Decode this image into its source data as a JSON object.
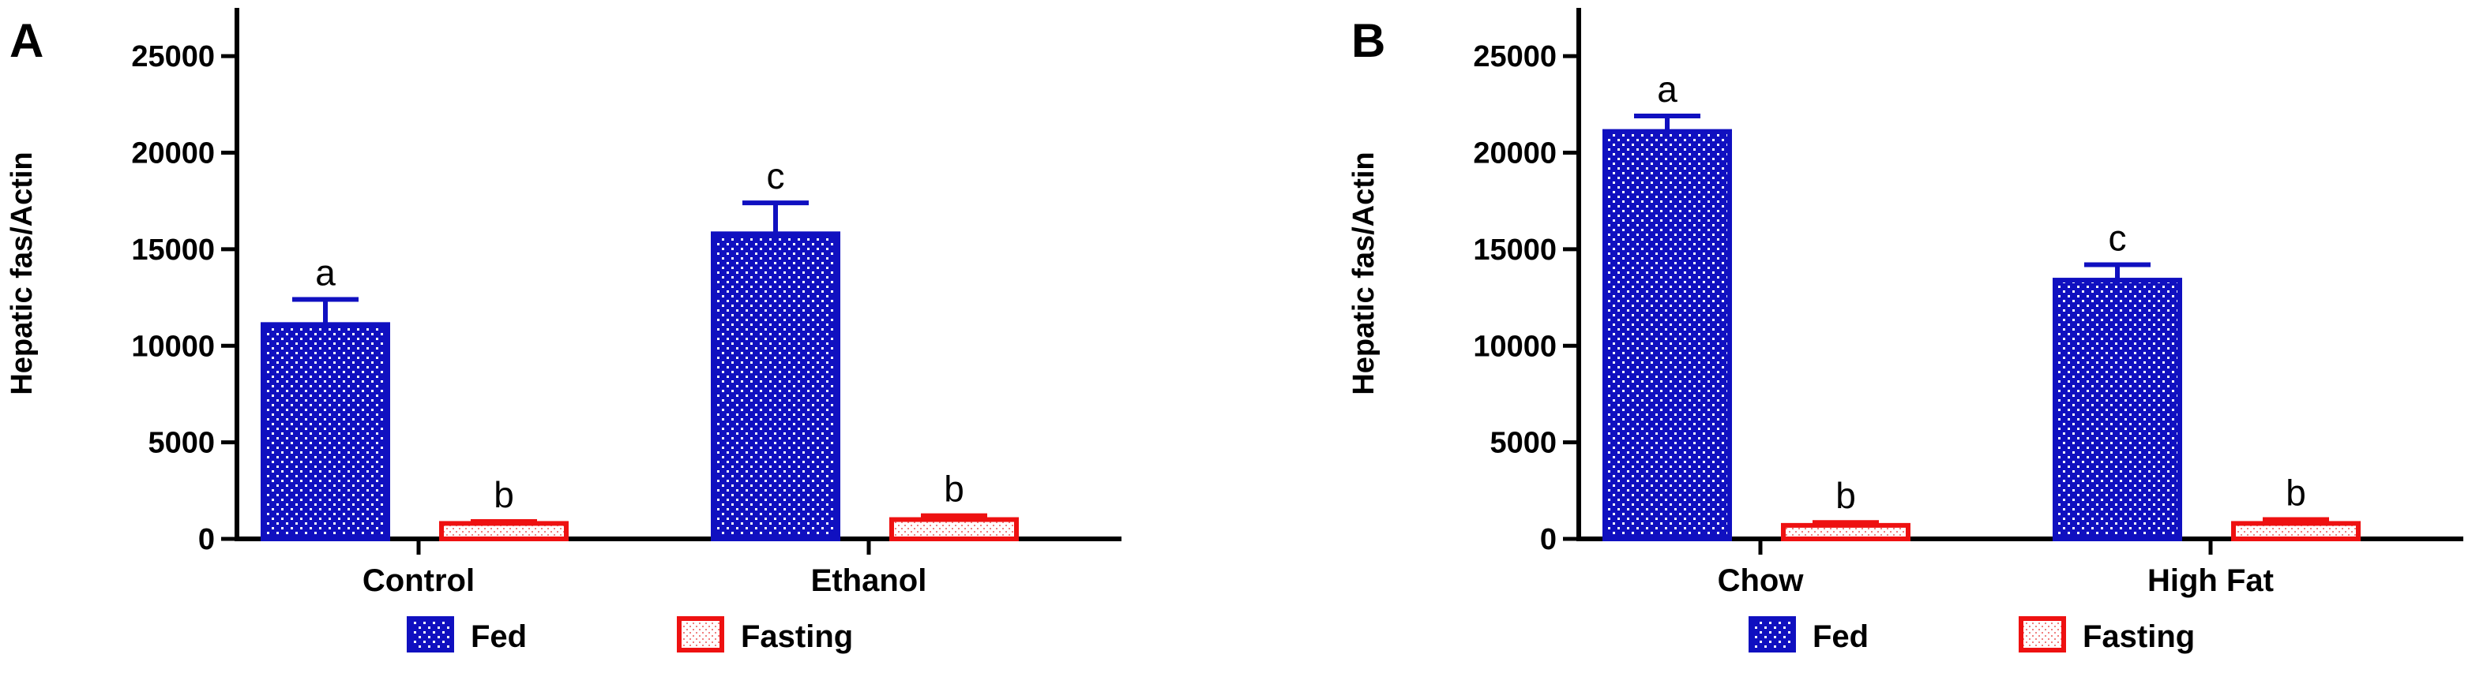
{
  "chart_data": [
    {
      "panel": "A",
      "type": "bar",
      "ylabel": "Hepatic fas/Actin",
      "ylim": [
        0,
        27500
      ],
      "yticks": [
        0,
        5000,
        10000,
        15000,
        20000,
        25000
      ],
      "ytick_labels": [
        "0",
        "5000",
        "10000",
        "15000",
        "20000",
        "25000"
      ],
      "grid": false,
      "categories": [
        "Control",
        "Ethanol"
      ],
      "series": [
        {
          "name": "Fed",
          "values": [
            11100,
            15800
          ],
          "errors": [
            1300,
            1600
          ],
          "letters": [
            "a",
            "c"
          ]
        },
        {
          "name": "Fasting",
          "values": [
            800,
            1000
          ],
          "errors": [
            100,
            200
          ],
          "letters": [
            "b",
            "b"
          ]
        }
      ]
    },
    {
      "panel": "B",
      "type": "bar",
      "ylabel": "Hepatic fas/Actin",
      "ylim": [
        0,
        27500
      ],
      "yticks": [
        0,
        5000,
        10000,
        15000,
        20000,
        25000
      ],
      "ytick_labels": [
        "0",
        "5000",
        "10000",
        "15000",
        "20000",
        "25000"
      ],
      "grid": false,
      "categories": [
        "Chow",
        "High Fat"
      ],
      "series": [
        {
          "name": "Fed",
          "values": [
            21100,
            13400
          ],
          "errors": [
            800,
            800
          ],
          "letters": [
            "a",
            "c"
          ]
        },
        {
          "name": "Fasting",
          "values": [
            700,
            800
          ],
          "errors": [
            150,
            200
          ],
          "letters": [
            "b",
            "b"
          ]
        }
      ]
    }
  ],
  "legend": {
    "position": "bottom",
    "items": [
      {
        "label": "Fed",
        "color": "#1010c0"
      },
      {
        "label": "Fasting",
        "color": "#ee1111"
      }
    ]
  },
  "colors": {
    "fed": "#1010c0",
    "fasting": "#ee1111",
    "axis": "#000000"
  }
}
